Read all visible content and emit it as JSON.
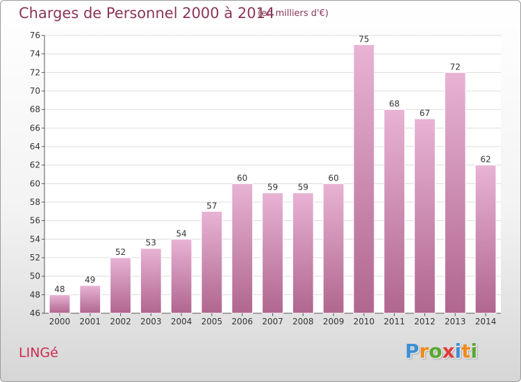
{
  "header": {
    "title": "Charges de Personnel 2000 à 2014",
    "unit_note": "(en milliers d'€)"
  },
  "footer": {
    "commune": "LINGé",
    "brand": "Proxiti",
    "brand_colors": [
      "#3d8fd6",
      "#f08a1c",
      "#5aa832",
      "#e23b3b",
      "#3d8fd6",
      "#f08a1c",
      "#5aa832"
    ]
  },
  "chart_data": {
    "type": "bar",
    "title": "Charges de Personnel 2000 à 2014",
    "subtitle": "(en milliers d'€)",
    "categories": [
      "2000",
      "2001",
      "2002",
      "2003",
      "2004",
      "2005",
      "2006",
      "2007",
      "2008",
      "2009",
      "2010",
      "2011",
      "2012",
      "2013",
      "2014"
    ],
    "values": [
      48,
      49,
      52,
      53,
      54,
      57,
      60,
      59,
      59,
      60,
      75,
      68,
      67,
      72,
      62
    ],
    "ylim": [
      46,
      76
    ],
    "yticks": [
      46,
      48,
      50,
      52,
      54,
      56,
      58,
      60,
      62,
      64,
      66,
      68,
      70,
      72,
      74,
      76
    ],
    "grid": true,
    "bar_color": "#cc7fae",
    "bar_color_light": "#e8b3d5",
    "bar_color_dark": "#b0668f"
  }
}
